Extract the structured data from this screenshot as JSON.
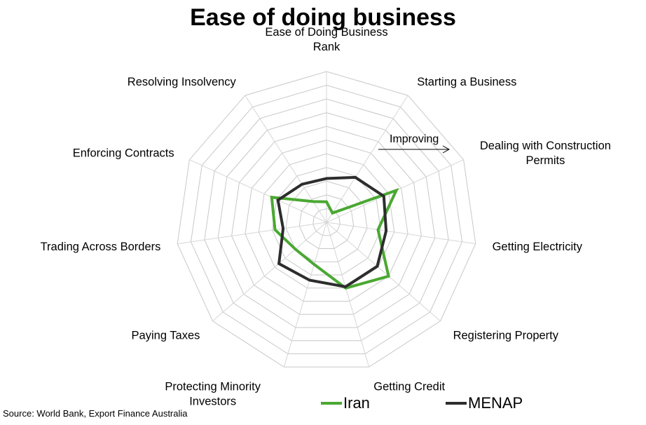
{
  "chart_data": {
    "type": "radar",
    "title": "Ease of doing business",
    "axes": [
      "Ease of Doing Business\nRank",
      "Starting a Business",
      "Dealing with Construction\nPermits",
      "Getting Electricity",
      "Registering Property",
      "Getting Credit",
      "Protecting Minority\nInvestors",
      "Paying Taxes",
      "Trading Across Borders",
      "Enforcing Contracts",
      "Resolving Insolvency"
    ],
    "rlim": [
      0,
      11
    ],
    "rings": 11,
    "grid": true,
    "legend_position": "bottom",
    "series": [
      {
        "name": "Iran",
        "color": "#4aa832",
        "values": [
          1.5,
          0.8,
          5.6,
          3.8,
          6.0,
          5.0,
          3.2,
          3.0,
          3.8,
          4.4,
          1.8
        ]
      },
      {
        "name": "MENAP",
        "color": "#2d2d2d",
        "values": [
          3.2,
          3.9,
          4.6,
          4.4,
          4.9,
          4.9,
          4.4,
          4.6,
          3.2,
          3.9,
          3.3
        ]
      }
    ],
    "annotation": {
      "text": "Improving",
      "arrow": "right"
    }
  },
  "source_text": "Source: World Bank, Export Finance Australia"
}
